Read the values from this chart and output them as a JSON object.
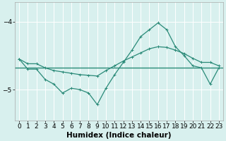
{
  "smooth_x": [
    0,
    1,
    2,
    3,
    4,
    5,
    6,
    7,
    8,
    9,
    10,
    11,
    12,
    13,
    14,
    15,
    16,
    17,
    18,
    19,
    20,
    21,
    22,
    23
  ],
  "smooth_y": [
    -4.55,
    -4.62,
    -4.62,
    -4.68,
    -4.72,
    -4.74,
    -4.76,
    -4.78,
    -4.79,
    -4.8,
    -4.72,
    -4.65,
    -4.58,
    -4.52,
    -4.46,
    -4.4,
    -4.37,
    -4.38,
    -4.42,
    -4.47,
    -4.54,
    -4.6,
    -4.6,
    -4.65
  ],
  "jagged_x": [
    0,
    1,
    2,
    3,
    4,
    5,
    6,
    7,
    8,
    9,
    10,
    11,
    12,
    13,
    14,
    15,
    16,
    17,
    18,
    19,
    20,
    21,
    22,
    23
  ],
  "jagged_y": [
    -4.55,
    -4.7,
    -4.7,
    -4.85,
    -4.92,
    -5.05,
    -4.98,
    -5.0,
    -5.05,
    -5.22,
    -4.98,
    -4.78,
    -4.6,
    -4.42,
    -4.22,
    -4.12,
    -4.02,
    -4.12,
    -4.37,
    -4.5,
    -4.65,
    -4.68,
    -4.92,
    -4.68
  ],
  "hline_y": -4.68,
  "color": "#2a8a78",
  "bg_color": "#d8f0ee",
  "grid_color": "#ffffff",
  "xlabel": "Humidex (Indice chaleur)",
  "xlim": [
    -0.5,
    23.5
  ],
  "ylim": [
    -5.45,
    -3.72
  ],
  "yticks": [
    -5,
    -4
  ],
  "xticks": [
    0,
    1,
    2,
    3,
    4,
    5,
    6,
    7,
    8,
    9,
    10,
    11,
    12,
    13,
    14,
    15,
    16,
    17,
    18,
    19,
    20,
    21,
    22,
    23
  ],
  "xlabel_fontsize": 7.5,
  "tick_fontsize": 6.5
}
